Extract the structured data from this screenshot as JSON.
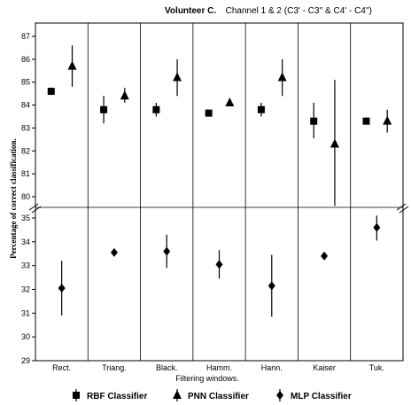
{
  "chart_data": {
    "type": "scatter",
    "title_prefix": "Volunteer C.",
    "title_rest": "Channel 1 & 2 (C3' - C3'' & C4' - C4'')",
    "xlabel": "Filtering windows.",
    "ylabel": "Percentage of correct classification.",
    "categories": [
      "Rect.",
      "Triang.",
      "Black.",
      "Hamm.",
      "Hann.",
      "Kaiser",
      "Tuk."
    ],
    "axis_break": true,
    "y_segments": [
      {
        "ticks": [
          "80",
          "81",
          "82",
          "83",
          "84",
          "85",
          "86",
          "87"
        ],
        "ylim": [
          80,
          87
        ]
      },
      {
        "ticks": [
          "29",
          "30",
          "31",
          "32",
          "33",
          "34",
          "35"
        ],
        "ylim": [
          29,
          35
        ]
      }
    ],
    "grid_vertical": true,
    "legend_position": "bottom",
    "series": [
      {
        "name": "RBF Classifier",
        "marker": "square",
        "values": [
          84.6,
          83.8,
          83.8,
          83.65,
          83.8,
          83.3,
          83.3
        ],
        "err_low": [
          84.5,
          83.2,
          83.5,
          83.55,
          83.5,
          82.55,
          83.2
        ],
        "err_high": [
          84.7,
          84.4,
          84.1,
          83.75,
          84.1,
          84.1,
          83.45
        ]
      },
      {
        "name": "PNN Classifier",
        "marker": "triangle",
        "values": [
          85.7,
          84.4,
          85.2,
          84.1,
          85.2,
          82.3,
          83.3
        ],
        "err_low": [
          84.8,
          84.1,
          84.4,
          84.05,
          84.4,
          79.6,
          82.8
        ],
        "err_high": [
          86.6,
          84.75,
          86.0,
          84.15,
          86.0,
          85.1,
          83.8
        ]
      },
      {
        "name": "MLP Classifier",
        "marker": "diamond",
        "values": [
          32.05,
          33.55,
          33.6,
          33.05,
          32.15,
          33.4,
          34.6
        ],
        "err_low": [
          30.9,
          33.55,
          32.9,
          32.45,
          30.85,
          33.4,
          34.05
        ],
        "err_high": [
          33.2,
          33.55,
          34.3,
          33.65,
          33.45,
          33.4,
          35.1
        ]
      }
    ]
  }
}
